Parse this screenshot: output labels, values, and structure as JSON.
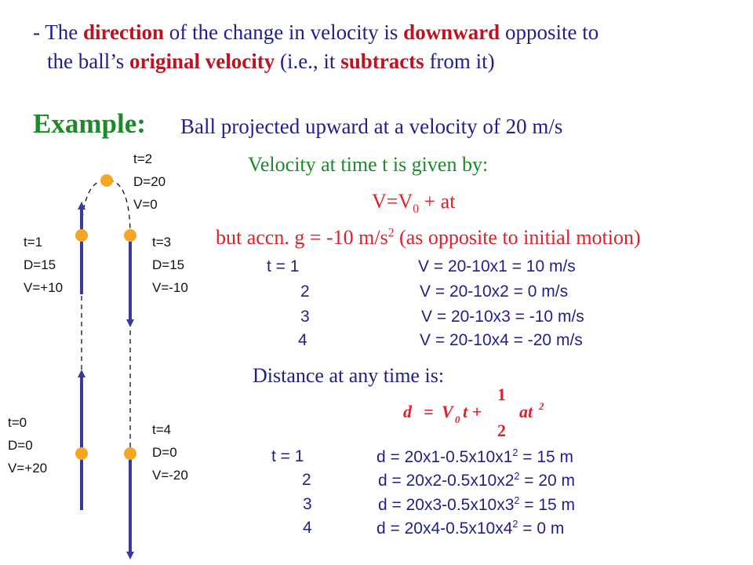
{
  "intro": {
    "dash": "-",
    "parts": [
      {
        "t": "The ",
        "s": "n"
      },
      {
        "t": "direction",
        "s": "r"
      },
      {
        "t": "  of the change in velocity is ",
        "s": "n"
      },
      {
        "t": "downward",
        "s": "r"
      },
      {
        "t": "  opposite to",
        "s": "n"
      }
    ],
    "parts2": [
      {
        "t": "the ball’s ",
        "s": "n"
      },
      {
        "t": "original velocity",
        "s": "r"
      },
      {
        "t": " (i.e., it ",
        "s": "n"
      },
      {
        "t": "subtracts",
        "s": "r"
      },
      {
        "t": " from it)",
        "s": "n"
      }
    ]
  },
  "example": {
    "label": "Example:",
    "text": "Ball projected upward at a velocity of 20 m/s"
  },
  "velocity": {
    "heading": "Velocity at time t is given by:",
    "formula_v": "V=V",
    "formula_sub": "0",
    "formula_rest": " + at",
    "accel": "but accn. g = -10 m/s",
    "accel_sup": "2",
    "accel_rest": " (as opposite to initial motion)",
    "rows": [
      {
        "t": "t = 1",
        "expr": "V = 20-10x1 =  10 m/s"
      },
      {
        "t": "2",
        "expr": "V = 20-10x2 =    0 m/s"
      },
      {
        "t": "3",
        "expr": "V = 20-10x3 = -10 m/s"
      },
      {
        "t": "4",
        "expr": "V = 20-10x4 = -20 m/s"
      }
    ]
  },
  "distance": {
    "heading": "Distance at any time is:",
    "eq_d": "d",
    "eq_eq": "=",
    "eq_v": "V",
    "eq_sub": "0",
    "eq_t": "t +",
    "eq_num": "1",
    "eq_den": "2",
    "eq_at": "at",
    "eq_sup": "2",
    "rows": [
      {
        "t": "t = 1",
        "pre": "d = 20x1-0.5x10x1",
        "sup": "2",
        "post": " = 15 m"
      },
      {
        "t": "2",
        "pre": "d = 20x2-0.5x10x2",
        "sup": "2",
        "post": " = 20 m"
      },
      {
        "t": "3",
        "pre": "d = 20x3-0.5x10x3",
        "sup": "2",
        "post": " = 15 m"
      },
      {
        "t": "4",
        "pre": "d = 20x4-0.5x10x4",
        "sup": "2",
        "post": " =   0 m"
      }
    ]
  },
  "diagram": {
    "colors": {
      "ball": "#f5a623",
      "arrow": "#3a3a9a",
      "path": "#111111"
    },
    "labels": [
      {
        "id": "t0",
        "lines": [
          "t=0",
          "D=0",
          "V=+20"
        ]
      },
      {
        "id": "t1",
        "lines": [
          "t=1",
          "D=15",
          "V=+10"
        ]
      },
      {
        "id": "t2",
        "lines": [
          "t=2",
          "D=20",
          "V=0"
        ]
      },
      {
        "id": "t3",
        "lines": [
          "t=3",
          "D=15",
          "V=-10"
        ]
      },
      {
        "id": "t4",
        "lines": [
          "t=4",
          "D=0",
          "V=-20"
        ]
      }
    ]
  }
}
